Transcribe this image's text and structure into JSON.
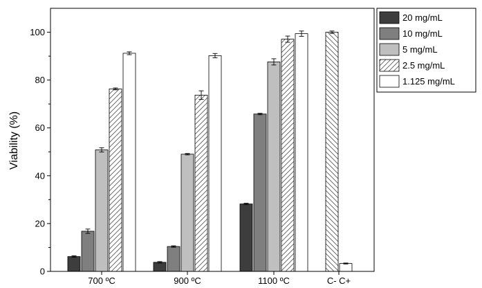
{
  "chart_data": {
    "type": "bar",
    "ylabel": "Viability (%)",
    "xlabel": "",
    "ylim": [
      0,
      110
    ],
    "yticks": [
      0,
      20,
      40,
      60,
      80,
      100
    ],
    "groups": [
      {
        "label": "700 ºC",
        "bars": [
          {
            "series": "20 mg/mL",
            "value": 6.2,
            "error": 0.3
          },
          {
            "series": "10 mg/mL",
            "value": 16.8,
            "error": 0.9
          },
          {
            "series": "5 mg/mL",
            "value": 50.8,
            "error": 0.9
          },
          {
            "series": "2.5 mg/mL",
            "value": 76.3,
            "error": 0.4
          },
          {
            "series": "1.125 mg/mL",
            "value": 91.2,
            "error": 0.6
          }
        ]
      },
      {
        "label": "900 ºC",
        "bars": [
          {
            "series": "20 mg/mL",
            "value": 3.8,
            "error": 0.3
          },
          {
            "series": "10 mg/mL",
            "value": 10.4,
            "error": 0.3
          },
          {
            "series": "5 mg/mL",
            "value": 49.0,
            "error": 0.3
          },
          {
            "series": "2.5 mg/mL",
            "value": 73.7,
            "error": 1.8
          },
          {
            "series": "1.125 mg/mL",
            "value": 90.2,
            "error": 0.9
          }
        ]
      },
      {
        "label": "1100 ºC",
        "bars": [
          {
            "series": "20 mg/mL",
            "value": 28.2,
            "error": 0.3
          },
          {
            "series": "10 mg/mL",
            "value": 65.8,
            "error": 0.3
          },
          {
            "series": "5 mg/mL",
            "value": 87.6,
            "error": 1.3
          },
          {
            "series": "2.5 mg/mL",
            "value": 97.1,
            "error": 1.3
          },
          {
            "series": "1.125 mg/mL",
            "value": 99.4,
            "error": 1.1
          }
        ]
      },
      {
        "label": "C- C+",
        "bars": [
          {
            "series": "C-",
            "value": 100.0,
            "error": 0.5
          },
          {
            "series": "C+",
            "value": 3.3,
            "error": 0.2
          }
        ]
      }
    ],
    "legend": {
      "position": "right",
      "entries": [
        {
          "label": "20 mg/mL",
          "fill": "#3d3d3d",
          "pattern": "solid"
        },
        {
          "label": "10 mg/mL",
          "fill": "#7f7f7f",
          "pattern": "solid"
        },
        {
          "label": "5 mg/mL",
          "fill": "#bfbfbf",
          "pattern": "solid"
        },
        {
          "label": "2.5 mg/mL",
          "fill": "#ffffff",
          "pattern": "hatch-forward"
        },
        {
          "label": "1.125 mg/mL",
          "fill": "#ffffff",
          "pattern": "solid"
        }
      ]
    },
    "control_patterns": {
      "C-": "hatch-backward",
      "C+": "solid-white"
    },
    "grid": false
  }
}
